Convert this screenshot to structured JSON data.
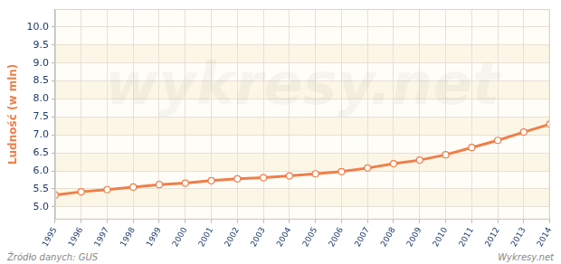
{
  "chart_data": {
    "type": "line",
    "y_label": "Ludność (w mln)",
    "source": "Źródło danych:  GUS",
    "credit": "Wykresy.net",
    "watermark": "wykresy.net",
    "categories": [
      "1995",
      "1996",
      "1997",
      "1998",
      "1999",
      "2000",
      "2001",
      "2002",
      "2003",
      "2004",
      "2005",
      "2006",
      "2007",
      "2008",
      "2009",
      "2010",
      "2011",
      "2012",
      "2013",
      "2014"
    ],
    "values": [
      5.33,
      5.42,
      5.48,
      5.55,
      5.62,
      5.66,
      5.73,
      5.78,
      5.81,
      5.86,
      5.92,
      5.98,
      6.08,
      6.2,
      6.3,
      6.45,
      6.65,
      6.85,
      7.08,
      7.3
    ],
    "color": "#f07e48",
    "marker": "circle",
    "ylim": [
      4.65,
      10.5
    ],
    "yticks": [
      {
        "value": 5,
        "label": "5.0"
      },
      {
        "value": 5.5,
        "label": "5.5"
      },
      {
        "value": 6,
        "label": "6.0"
      },
      {
        "value": 6.5,
        "label": "6.5"
      },
      {
        "value": 7,
        "label": "7.0"
      },
      {
        "value": 7.5,
        "label": "7.5"
      },
      {
        "value": 8,
        "label": "8.0"
      },
      {
        "value": 8.5,
        "label": "8.5"
      },
      {
        "value": 9,
        "label": "9.0"
      },
      {
        "value": 9.5,
        "label": "9.5"
      },
      {
        "value": 10,
        "label": "10.0"
      }
    ],
    "grid": true
  }
}
